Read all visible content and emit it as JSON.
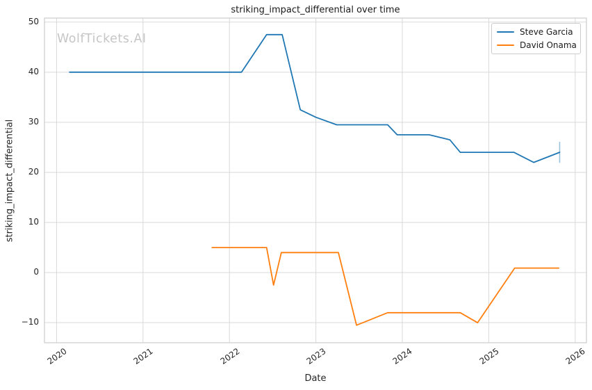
{
  "chart_data": {
    "type": "line",
    "title": "striking_impact_differential over time",
    "xlabel": "Date",
    "ylabel": "striking_impact_differential",
    "watermark": "WolfTickets.AI",
    "xlim": [
      2019.86,
      2026.13
    ],
    "ylim": [
      -14,
      50.8
    ],
    "xticks": [
      2020,
      2021,
      2022,
      2023,
      2024,
      2025,
      2026
    ],
    "yticks": [
      -10,
      0,
      10,
      20,
      30,
      40,
      50
    ],
    "grid": true,
    "legend": {
      "position": "upper right",
      "entries": [
        "Steve Garcia",
        "David Onama"
      ]
    },
    "colors": {
      "grid": "#d9d9d9",
      "spine": "#cccccc",
      "text": "#262626",
      "watermark": "#c6c6c6",
      "steve_garcia": "#1f77b4",
      "david_onama": "#ff7f0e",
      "errorbar": "rgba(31,119,180,0.45)"
    },
    "series": [
      {
        "name": "Steve Garcia",
        "color": "#1f77b4",
        "points": [
          [
            2020.15,
            40
          ],
          [
            2022.14,
            40
          ],
          [
            2022.43,
            47.5
          ],
          [
            2022.61,
            47.5
          ],
          [
            2022.82,
            32.5
          ],
          [
            2023.0,
            31
          ],
          [
            2023.24,
            29.5
          ],
          [
            2023.83,
            29.5
          ],
          [
            2023.94,
            27.5
          ],
          [
            2024.31,
            27.5
          ],
          [
            2024.55,
            26.5
          ],
          [
            2024.67,
            24
          ],
          [
            2025.29,
            24
          ],
          [
            2025.52,
            22
          ],
          [
            2025.82,
            24
          ]
        ]
      },
      {
        "name": "David Onama",
        "color": "#ff7f0e",
        "points": [
          [
            2021.8,
            5
          ],
          [
            2022.43,
            5
          ],
          [
            2022.51,
            -2.5
          ],
          [
            2022.6,
            4
          ],
          [
            2023.26,
            4
          ],
          [
            2023.47,
            -10.5
          ],
          [
            2023.83,
            -8
          ],
          [
            2024.67,
            -8
          ],
          [
            2024.87,
            -10
          ],
          [
            2025.3,
            0.9
          ],
          [
            2025.81,
            0.9
          ]
        ]
      }
    ],
    "errorbars": [
      {
        "series": "Steve Garcia",
        "x": 2025.82,
        "low": 21.9,
        "high": 26.1
      }
    ]
  }
}
